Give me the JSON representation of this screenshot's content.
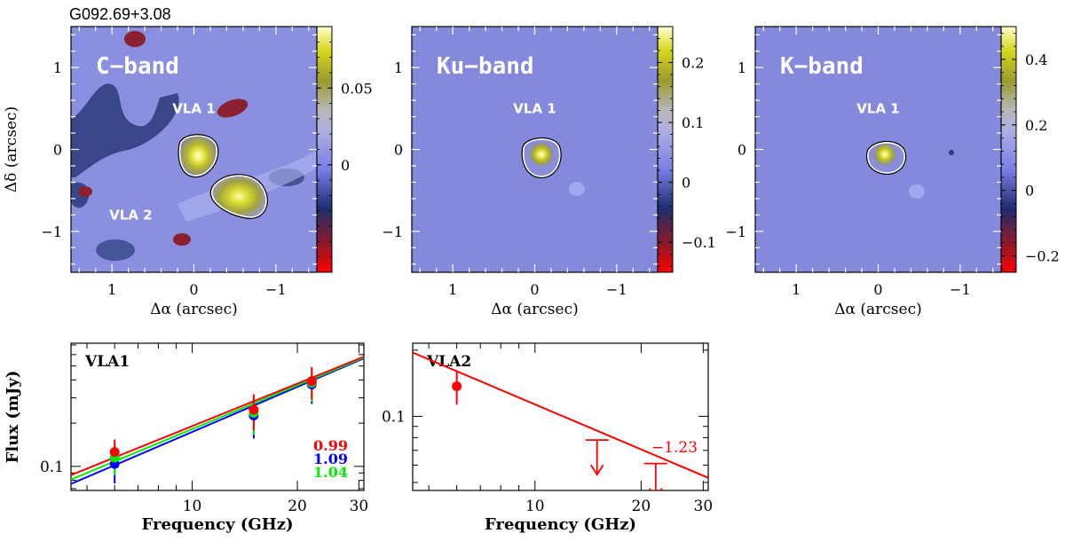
{
  "figure_title": "G092.69+3.08",
  "chart_data": [
    {
      "type": "heatmap",
      "band_label": "C−band",
      "xlabel": "Δα (arcsec)",
      "ylabel": "Δδ (arcsec)",
      "xlim": [
        1.5,
        -1.5
      ],
      "ylim": [
        -1.5,
        1.5
      ],
      "x_ticks": [
        1,
        0,
        -1
      ],
      "x_tick_labels": [
        "1",
        "0",
        "−1"
      ],
      "y_ticks": [
        1,
        0,
        -1
      ],
      "y_tick_labels": [
        "1",
        "0",
        "−1"
      ],
      "colorbar_range": [
        -0.07,
        0.09
      ],
      "colorbar_ticks": [
        0,
        0.05
      ],
      "colorbar_tick_labels": [
        "0",
        "0.05"
      ],
      "sources": [
        {
          "label": "VLA 1",
          "x": 0.0,
          "y": -0.07,
          "label_x": 0.0,
          "label_y": 0.5
        },
        {
          "label": "VLA 2",
          "x": -0.55,
          "y": -0.55,
          "label_x": 0.77,
          "label_y": -0.8
        }
      ]
    },
    {
      "type": "heatmap",
      "band_label": "Ku−band",
      "xlabel": "Δα (arcsec)",
      "ylabel": "",
      "xlim": [
        1.5,
        -1.5
      ],
      "ylim": [
        -1.5,
        1.5
      ],
      "x_ticks": [
        1,
        0,
        -1
      ],
      "x_tick_labels": [
        "1",
        "0",
        "−1"
      ],
      "y_ticks": [
        1,
        0,
        -1
      ],
      "y_tick_labels": [
        "1",
        "0",
        "−1"
      ],
      "colorbar_range": [
        -0.15,
        0.26
      ],
      "colorbar_ticks": [
        -0.1,
        0,
        0.1,
        0.2
      ],
      "colorbar_tick_labels": [
        "−0.1",
        "0",
        "0.1",
        "0.2"
      ],
      "sources": [
        {
          "label": "VLA 1",
          "x": -0.05,
          "y": -0.07,
          "label_x": 0.0,
          "label_y": 0.5
        }
      ]
    },
    {
      "type": "heatmap",
      "band_label": "K−band",
      "xlabel": "Δα (arcsec)",
      "ylabel": "",
      "xlim": [
        1.5,
        -1.5
      ],
      "ylim": [
        -1.5,
        1.5
      ],
      "x_ticks": [
        1,
        0,
        -1
      ],
      "x_tick_labels": [
        "1",
        "0",
        "−1"
      ],
      "y_ticks": [
        1,
        0,
        -1
      ],
      "y_tick_labels": [
        "1",
        "0",
        "−1"
      ],
      "colorbar_range": [
        -0.25,
        0.5
      ],
      "colorbar_ticks": [
        -0.2,
        0,
        0.2,
        0.4
      ],
      "colorbar_tick_labels": [
        "−0.2",
        "0",
        "0.2",
        "0.4"
      ],
      "sources": [
        {
          "label": "VLA 1",
          "x": -0.05,
          "y": -0.07,
          "label_x": 0.0,
          "label_y": 0.5
        }
      ]
    },
    {
      "type": "scatter",
      "panel_label": "VLA1",
      "xlabel": "Frequency (GHz)",
      "ylabel": "Flux (mJy)",
      "xscale": "log",
      "yscale": "log",
      "xlim": [
        4.5,
        31
      ],
      "ylim": [
        0.068,
        0.72
      ],
      "x_ticks": [
        10,
        20,
        30
      ],
      "x_tick_labels": [
        "10",
        "20",
        "30"
      ],
      "y_ticks": [
        0.1
      ],
      "y_tick_labels": [
        "0.1"
      ],
      "series": [
        {
          "color": "#ff0000",
          "x": [
            6,
            15,
            22
          ],
          "y": [
            0.126,
            0.248,
            0.392
          ],
          "yerr_low": [
            0.028,
            0.07,
            0.1
          ],
          "yerr_high": [
            0.028,
            0.07,
            0.1
          ],
          "fit_label": "0.99",
          "fit_y_at_xmin": 0.087,
          "fit_y_at_xmax": 0.58
        },
        {
          "color": "#0000ff",
          "x": [
            6,
            15,
            22
          ],
          "y": [
            0.104,
            0.226,
            0.372
          ],
          "yerr_low": [
            0.028,
            0.07,
            0.1
          ],
          "yerr_high": [
            0.028,
            0.07,
            0.1
          ],
          "fit_label": "1.09",
          "fit_y_at_xmin": 0.0755,
          "fit_y_at_xmax": 0.565
        },
        {
          "color": "#00ee00",
          "x": [
            6,
            15,
            22
          ],
          "y": [
            0.115,
            0.236,
            0.382
          ],
          "yerr_low": [
            0.028,
            0.07,
            0.1
          ],
          "yerr_high": [
            0.028,
            0.07,
            0.1
          ],
          "fit_label": "1.04",
          "fit_y_at_xmin": 0.081,
          "fit_y_at_xmax": 0.572
        }
      ]
    },
    {
      "type": "scatter",
      "panel_label": "VLA2",
      "xlabel": "Frequency (GHz)",
      "ylabel": "",
      "xscale": "log",
      "yscale": "log",
      "xlim": [
        4.5,
        31
      ],
      "ylim": [
        0.046,
        0.215
      ],
      "x_ticks": [
        10,
        20,
        30
      ],
      "x_tick_labels": [
        "10",
        "20",
        "30"
      ],
      "y_ticks": [
        0.1
      ],
      "y_tick_labels": [
        "0.1"
      ],
      "series": [
        {
          "color": "#ff0000",
          "x": [
            6
          ],
          "y": [
            0.137
          ],
          "yerr_low": [
            0.024
          ],
          "yerr_high": [
            0.024
          ],
          "upper_limits": [
            {
              "x": 15,
              "y": 0.078
            },
            {
              "x": 22,
              "y": 0.061
            }
          ],
          "fit_label": "−1.23",
          "fit_y_at_xmin": 0.195,
          "fit_y_at_xmax": 0.0525
        }
      ]
    }
  ]
}
